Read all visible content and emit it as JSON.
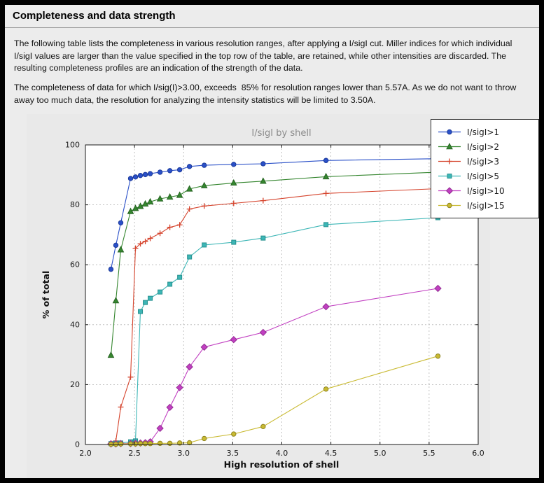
{
  "page": {
    "title": "Completeness and data strength",
    "paragraph1": "The following table lists the completeness in various resolution ranges, after applying a I/sigI cut. Miller indices for which individual I/sigI values are larger than the value specified in the top row of the table, are retained, while other intensities are discarded. The resulting completeness profiles are an indication of the strength of the data.",
    "paragraph2": "The completeness of data for which I/sig(I)>3.00, exceeds  85% for resolution ranges lower than 5.57A. As we do not want to throw away too much data, the resolution for analyzing the intensity statistics will be limited to 3.50A."
  },
  "chart_data": {
    "type": "line",
    "title": "I/sigI by shell",
    "xlabel": "High resolution of shell",
    "ylabel": "% of total",
    "xlim": [
      2.0,
      6.0
    ],
    "ylim": [
      0,
      100
    ],
    "xticks": [
      2.0,
      2.5,
      3.0,
      3.5,
      4.0,
      4.5,
      5.0,
      5.5,
      6.0
    ],
    "xtick_labels": [
      "2.0",
      "2.5",
      "3.0",
      "3.5",
      "4.0",
      "4.5",
      "5.0",
      "5.5",
      "6.0"
    ],
    "yticks": [
      0,
      20,
      40,
      60,
      80,
      100
    ],
    "ytick_labels": [
      "0",
      "20",
      "40",
      "60",
      "80",
      "100"
    ],
    "grid": true,
    "legend_position": "top-right",
    "x": [
      2.26,
      2.31,
      2.36,
      2.46,
      2.51,
      2.56,
      2.61,
      2.66,
      2.76,
      2.86,
      2.96,
      3.06,
      3.21,
      3.51,
      3.81,
      4.45,
      5.59
    ],
    "series": [
      {
        "name": "I/sigI>1",
        "color": "#2a50c8",
        "edge": "#1c3a99",
        "marker": "circle",
        "values": [
          58.5,
          66.5,
          74.0,
          88.8,
          89.3,
          89.8,
          90.1,
          90.4,
          90.9,
          91.4,
          91.7,
          92.8,
          93.2,
          93.5,
          93.7,
          94.8,
          95.4
        ]
      },
      {
        "name": "I/sigI>2",
        "color": "#35862f",
        "edge": "#266422",
        "marker": "triangle",
        "values": [
          29.8,
          48.0,
          65.0,
          77.8,
          78.8,
          79.5,
          80.3,
          81.0,
          82.0,
          82.6,
          83.2,
          85.3,
          86.4,
          87.3,
          87.9,
          89.4,
          90.9
        ]
      },
      {
        "name": "I/sigI>3",
        "color": "#d5432c",
        "edge": "#a93522",
        "marker": "plus",
        "values": [
          0.4,
          1.2,
          12.5,
          22.5,
          65.5,
          67.0,
          67.8,
          68.8,
          70.5,
          72.5,
          73.3,
          78.6,
          79.6,
          80.5,
          81.4,
          83.8,
          85.4
        ]
      },
      {
        "name": "I/sigI>5",
        "color": "#3db6b6",
        "edge": "#27918f",
        "marker": "square",
        "values": [
          0.3,
          0.4,
          0.5,
          0.9,
          1.2,
          44.4,
          47.4,
          48.8,
          50.9,
          53.5,
          55.8,
          62.6,
          66.6,
          67.5,
          68.9,
          73.4,
          75.7
        ]
      },
      {
        "name": "I/sigI>10",
        "color": "#c13fc1",
        "edge": "#942f94",
        "marker": "diamond",
        "values": [
          0.2,
          0.2,
          0.3,
          0.3,
          0.4,
          0.5,
          0.6,
          0.9,
          5.4,
          12.4,
          19.0,
          25.9,
          32.5,
          35.0,
          37.4,
          46.0,
          52.1
        ]
      },
      {
        "name": "I/sigI>15",
        "color": "#c9ba32",
        "edge": "#8f8420",
        "marker": "circle",
        "values": [
          0.1,
          0.1,
          0.2,
          0.2,
          0.2,
          0.3,
          0.3,
          0.3,
          0.4,
          0.4,
          0.5,
          0.6,
          2.0,
          3.5,
          6.0,
          18.5,
          29.5
        ]
      }
    ]
  }
}
